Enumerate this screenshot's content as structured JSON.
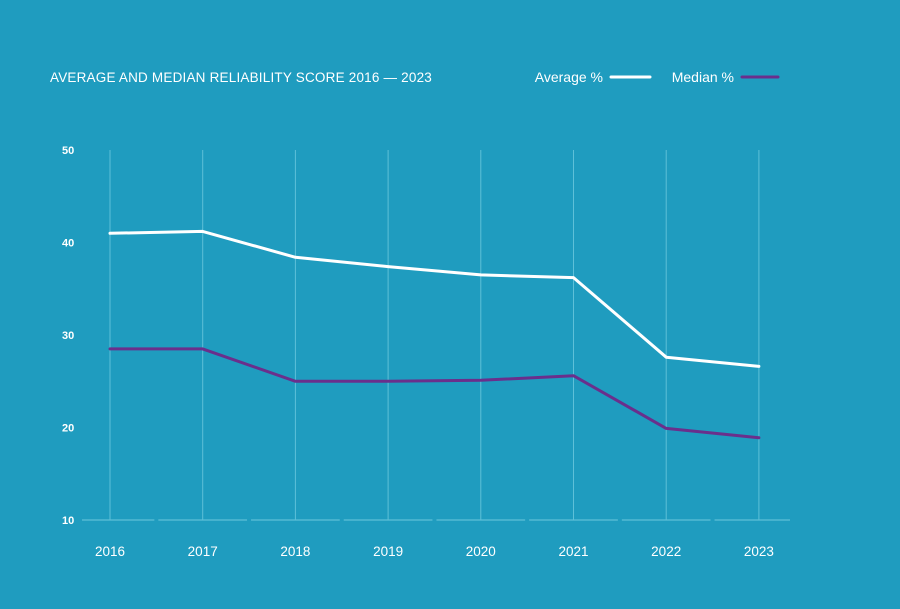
{
  "chart_data": {
    "type": "line",
    "title": "AVERAGE AND MEDIAN RELIABILITY SCORE 2016 2023",
    "title_display": "AVERAGE AND MEDIAN RELIABILITY SCORE 2016 — 2023",
    "xlabel": "",
    "ylabel": "",
    "categories": [
      "2016",
      "2017",
      "2018",
      "2019",
      "2020",
      "2021",
      "2022",
      "2023"
    ],
    "series": [
      {
        "name": "Average %",
        "color": "#ffffff",
        "values": [
          41.0,
          41.2,
          38.4,
          37.4,
          36.5,
          36.2,
          27.6,
          26.6
        ]
      },
      {
        "name": "Median %",
        "color": "#6a2f8c",
        "values": [
          28.5,
          28.5,
          25.0,
          25.0,
          25.1,
          25.6,
          19.9,
          18.9
        ]
      }
    ],
    "ylim": [
      10,
      50
    ],
    "yticks": [
      10,
      20,
      30,
      40,
      50
    ],
    "grid": "vertical",
    "legend_position": "top-right",
    "background": "#1f9cbf",
    "gridline_color": "#5ec0d8"
  }
}
